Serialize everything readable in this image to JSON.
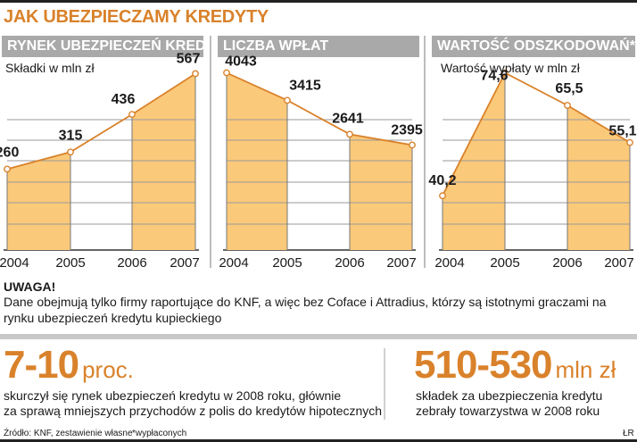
{
  "title": "JAK UBEZPIECZAMY KREDYTY",
  "chart_data": [
    {
      "type": "area",
      "title": "RYNEK UBEZPIECZEŃ KREDYTU",
      "ylabel": "Składki w mln zł",
      "categories": [
        "2004",
        "2005",
        "2006",
        "2007"
      ],
      "values": [
        260,
        315,
        436,
        567
      ],
      "value_labels": [
        "260",
        "315",
        "436",
        "567"
      ],
      "ylim": [
        0,
        620
      ]
    },
    {
      "type": "area",
      "title": "LICZBA WPŁAT",
      "ylabel": "",
      "categories": [
        "2004",
        "2005",
        "2006",
        "2007"
      ],
      "values": [
        4043,
        3415,
        2641,
        2395
      ],
      "value_labels": [
        "4043",
        "3415",
        "2641",
        "2395"
      ],
      "ylim": [
        0,
        4400
      ]
    },
    {
      "type": "area",
      "title": "WARTOŚĆ ODSZKODOWAŃ*",
      "ylabel": "Wartość wypłaty w mln zł",
      "categories": [
        "2004",
        "2005",
        "2006",
        "2007"
      ],
      "values": [
        40.2,
        74.6,
        65.5,
        55.1
      ],
      "value_labels": [
        "40,2",
        "74,6",
        "65,5",
        "55,1"
      ],
      "ylim": [
        25,
        79
      ]
    }
  ],
  "notice": {
    "title": "UWAGA!",
    "text": "Dane obejmują tylko firmy raportujące do KNF, a więc bez Coface i Attradius, którzy są istotnymi graczami na rynku ubezpieczeń kredytu kupieckiego"
  },
  "stat_left": {
    "number": "7-10",
    "unit": "proc.",
    "line1": "skurczył się rynek ubezpieczeń kredytu w 2008 roku, głównie",
    "line2": "za sprawą mniejszych przychodów z polis do kredytów hipotecznych"
  },
  "stat_right": {
    "number": "510-530",
    "unit": "mln zł",
    "line1": "składek za ubezpieczenia kredytu",
    "line2": "zebrały towarzystwa w 2008 roku"
  },
  "footer": {
    "source": "Źródło: KNF, zestawienie własne",
    "footnote": "*wypłaconych",
    "author": "ŁR"
  },
  "colors": {
    "accent": "#d9822b",
    "fill": "#fbc97a",
    "header_bg": "#a9a9a9",
    "line": "#d9822b"
  }
}
